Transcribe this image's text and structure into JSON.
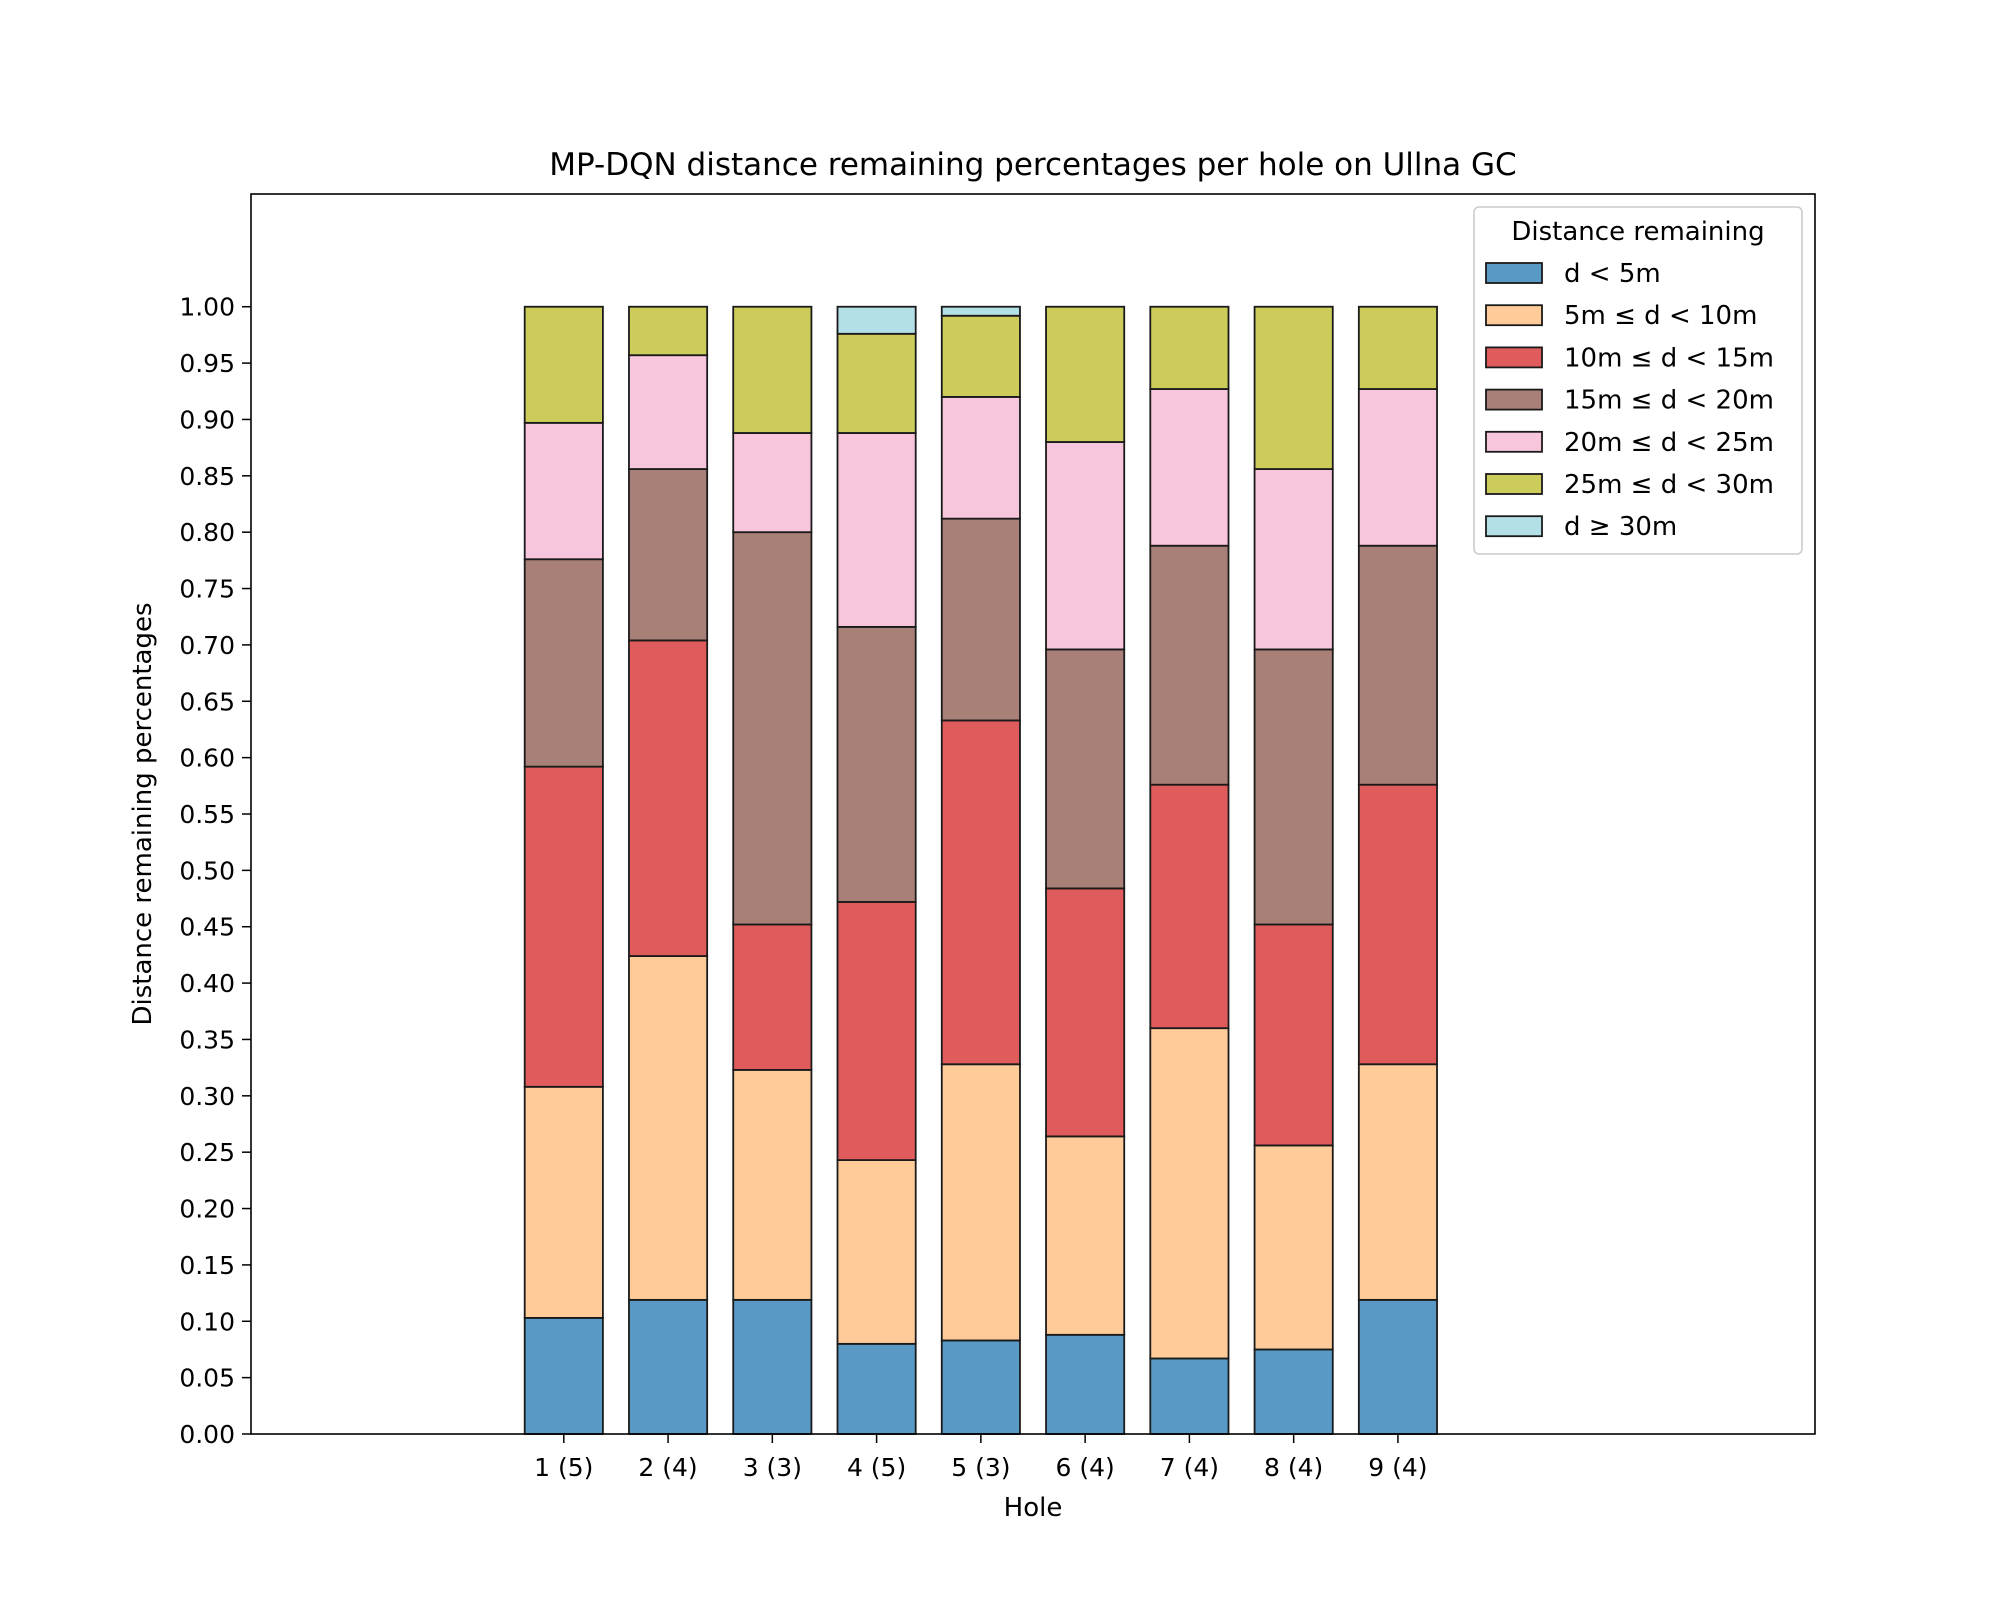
{
  "chart_data": {
    "type": "bar",
    "stacked": true,
    "title": "MP-DQN distance remaining percentages per hole on Ullna GC",
    "xlabel": "Hole",
    "ylabel": "Distance remaining percentages",
    "categories": [
      "1 (5)",
      "2 (4)",
      "3 (3)",
      "4 (5)",
      "5 (3)",
      "6 (4)",
      "7 (4)",
      "8 (4)",
      "9 (4)"
    ],
    "x_range": [
      -3.0,
      12.0
    ],
    "ylim": [
      0.0,
      1.1
    ],
    "yticks": [
      "0.00",
      "0.05",
      "0.10",
      "0.15",
      "0.20",
      "0.25",
      "0.30",
      "0.35",
      "0.40",
      "0.45",
      "0.50",
      "0.55",
      "0.60",
      "0.65",
      "0.70",
      "0.75",
      "0.80",
      "0.85",
      "0.90",
      "0.95",
      "1.00"
    ],
    "grid": false,
    "legend": {
      "title": "Distance remaining",
      "placement": "top-right"
    },
    "series": [
      {
        "name": "d < 5m",
        "color": "#5899c6",
        "values": [
          0.103,
          0.119,
          0.119,
          0.08,
          0.083,
          0.088,
          0.067,
          0.075,
          0.119
        ]
      },
      {
        "name": "5m ≤ d < 10m",
        "color": "#ffcc99",
        "values": [
          0.205,
          0.305,
          0.204,
          0.163,
          0.245,
          0.176,
          0.293,
          0.181,
          0.209
        ]
      },
      {
        "name": "10m ≤ d < 15m",
        "color": "#e05c5c",
        "values": [
          0.284,
          0.28,
          0.129,
          0.229,
          0.305,
          0.22,
          0.216,
          0.196,
          0.248
        ]
      },
      {
        "name": "15m ≤ d < 20m",
        "color": "#a88077",
        "values": [
          0.184,
          0.152,
          0.348,
          0.244,
          0.179,
          0.212,
          0.212,
          0.244,
          0.212
        ]
      },
      {
        "name": "20m ≤ d < 25m",
        "color": "#f8c6dc",
        "values": [
          0.121,
          0.101,
          0.088,
          0.172,
          0.108,
          0.184,
          0.139,
          0.16,
          0.139
        ]
      },
      {
        "name": "25m ≤ d < 30m",
        "color": "#cccc5a",
        "values": [
          0.103,
          0.043,
          0.112,
          0.088,
          0.072,
          0.12,
          0.073,
          0.144,
          0.073
        ]
      },
      {
        "name": "d ≥ 30m",
        "color": "#b2e0e6",
        "values": [
          0.0,
          0.0,
          0.0,
          0.024,
          0.008,
          0.0,
          0.0,
          0.0,
          0.0
        ]
      }
    ]
  }
}
